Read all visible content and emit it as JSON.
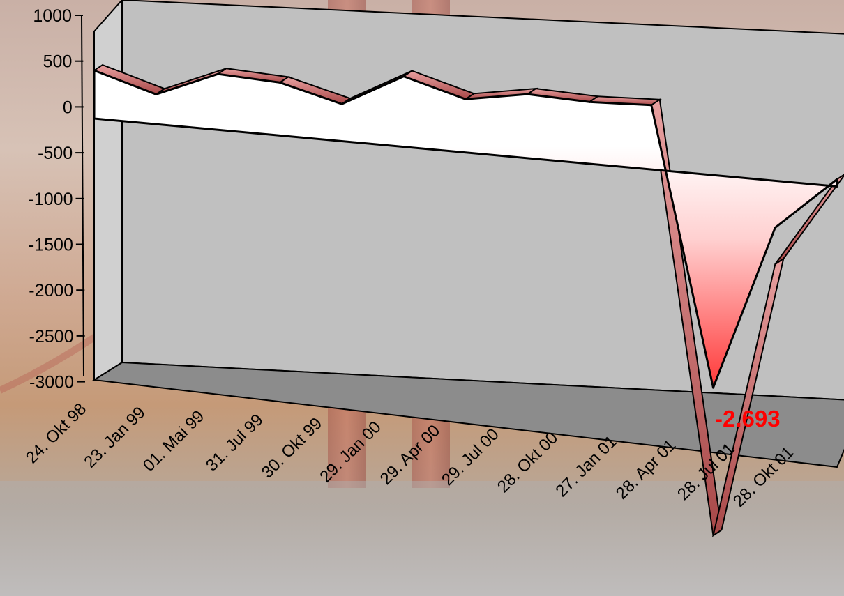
{
  "chart_data": {
    "type": "area",
    "style": "3d",
    "categories": [
      "24. Okt 98",
      "23. Jan 99",
      "01. Mai 99",
      "31. Jul 99",
      "30. Okt 99",
      "29. Jan 00",
      "29. Apr 00",
      "29. Jul 00",
      "28. Okt 00",
      "27. Jan 01",
      "28. Apr 01",
      "28. Jul 01",
      "28. Okt 01"
    ],
    "values": [
      580,
      340,
      600,
      540,
      360,
      650,
      470,
      540,
      500,
      500,
      -2693,
      -600,
      50
    ],
    "highlight_index": 10,
    "data_label": "-2.693",
    "ylim": [
      -3000,
      1000
    ],
    "yticks": [
      {
        "value": 1000,
        "label": "1000"
      },
      {
        "value": 500,
        "label": "500"
      },
      {
        "value": 0,
        "label": "0"
      },
      {
        "value": -500,
        "label": "-500"
      },
      {
        "value": -1000,
        "label": "-1000"
      },
      {
        "value": -1500,
        "label": "-1500"
      },
      {
        "value": -2000,
        "label": "-2000"
      },
      {
        "value": -2500,
        "label": "-2500"
      },
      {
        "value": -3000,
        "label": "-3000"
      }
    ],
    "grid": false,
    "legend": "none",
    "colors": {
      "wall": "#c0c0c0",
      "floor": "#8c8c8c",
      "fill_light": "#ffffff",
      "fill_dark": "#ff2020",
      "label": "#ff0000"
    }
  }
}
